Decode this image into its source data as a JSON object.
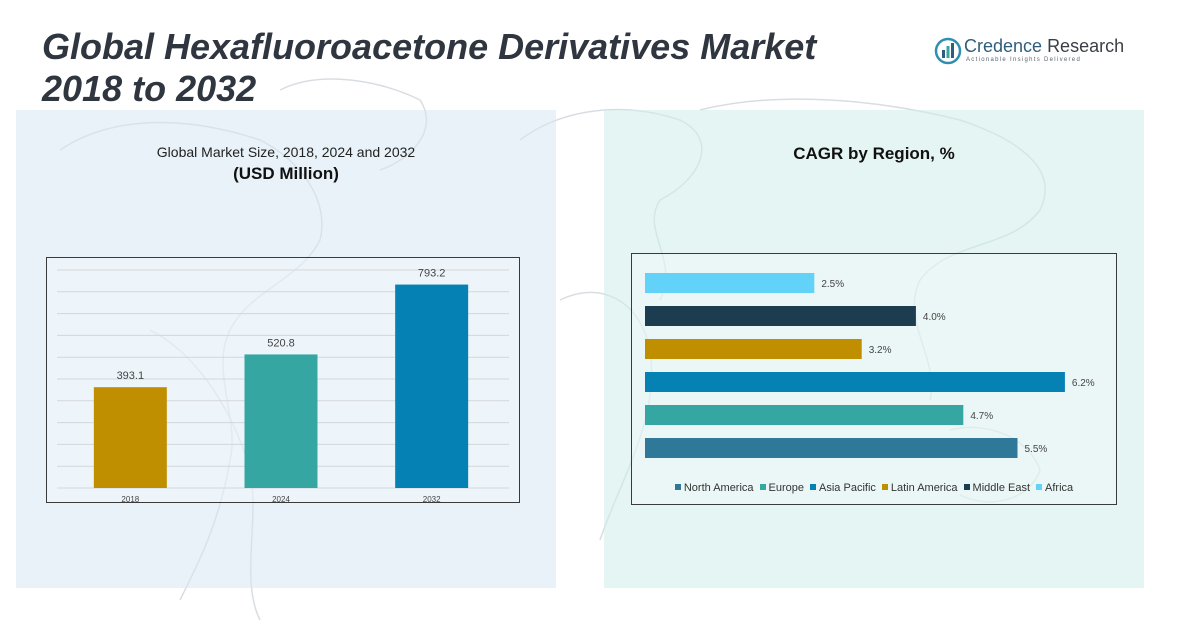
{
  "header": {
    "title_line1": "Global Hexafluoroacetone Derivatives Market",
    "title_line2": "2018 to 2032"
  },
  "logo": {
    "name_part1": "Credence",
    "name_part2": "Research",
    "tagline": "Actionable Insights Delivered",
    "icon": "bar-chart-logo-icon"
  },
  "colors": {
    "north_america": "#2f7899",
    "europe": "#36a6a2",
    "asia_pacific": "#0681b4",
    "latin_america": "#c08f00",
    "middle_east": "#1b3d4f",
    "africa": "#62d2f8"
  },
  "chart_data": [
    {
      "type": "bar",
      "title": "Global Market Size, 2018, 2024 and 2032",
      "subtitle": "(USD Million)",
      "categories": [
        "2018",
        "2024",
        "2032"
      ],
      "values": [
        393.1,
        520.8,
        793.2
      ],
      "value_labels": [
        "393.1",
        "520.8",
        "793.2"
      ],
      "bar_colors": [
        "#c08f00",
        "#36a6a2",
        "#0681b4"
      ],
      "ylim": [
        0,
        850
      ],
      "grid": true
    },
    {
      "type": "bar",
      "orientation": "horizontal",
      "title": "CAGR by Region, %",
      "categories": [
        "Africa",
        "Middle East",
        "Latin America",
        "Asia Pacific",
        "Europe",
        "North America"
      ],
      "values": [
        2.5,
        4.0,
        3.2,
        6.2,
        4.7,
        5.5
      ],
      "value_labels": [
        "2.5%",
        "4.0%",
        "3.2%",
        "6.2%",
        "4.7%",
        "5.5%"
      ],
      "bar_colors": [
        "#62d2f8",
        "#1b3d4f",
        "#c08f00",
        "#0681b4",
        "#36a6a2",
        "#2f7899"
      ],
      "xlim": [
        0,
        6.6
      ],
      "legend_position": "bottom",
      "legend": [
        {
          "name": "North America",
          "color": "#2f7899"
        },
        {
          "name": "Europe",
          "color": "#36a6a2"
        },
        {
          "name": "Asia Pacific",
          "color": "#0681b4"
        },
        {
          "name": "Latin America",
          "color": "#c08f00"
        },
        {
          "name": "Middle East",
          "color": "#1b3d4f"
        },
        {
          "name": "Africa",
          "color": "#62d2f8"
        }
      ]
    }
  ]
}
